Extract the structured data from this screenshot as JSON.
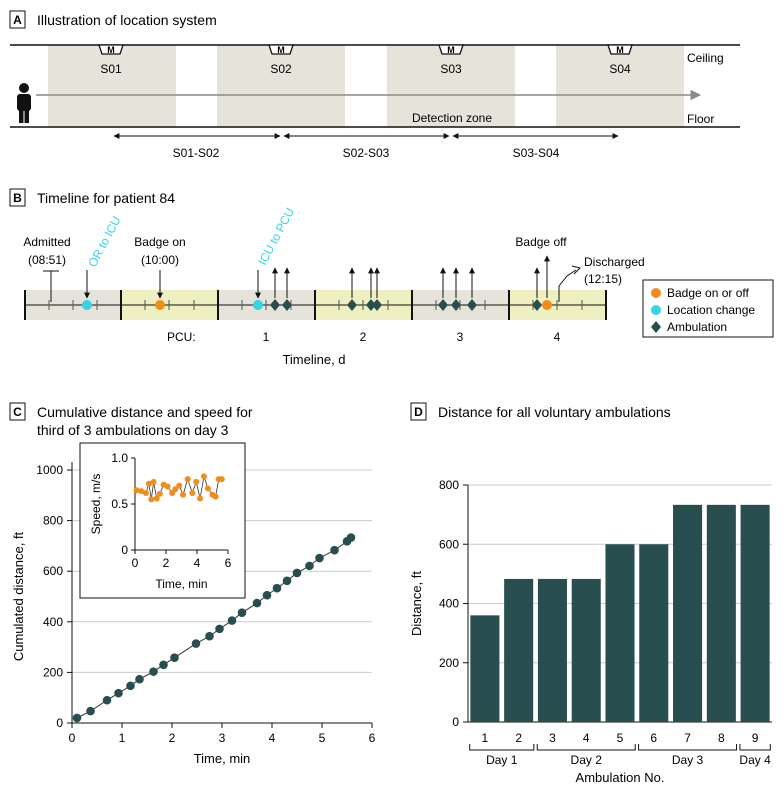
{
  "colors": {
    "zone_gray": "#e6e4da",
    "zone_green": "#eef0c2",
    "teal": "#294e4f",
    "orange": "#f28c1c",
    "cyan": "#35d3e3",
    "axis": "#111111",
    "gridline": "#cccccc"
  },
  "panel_a": {
    "letter": "A",
    "title": "Illustration of location system",
    "ceiling_label": "Ceiling",
    "floor_label": "Floor",
    "detection_zone_label": "Detection zone",
    "sensor_glyph": "M",
    "sensors": [
      "S01",
      "S02",
      "S03",
      "S04"
    ],
    "spans": [
      "S01-S02",
      "S02-S03",
      "S03-S04"
    ],
    "icons": [
      "person-icon",
      "motion-sensor-icon"
    ]
  },
  "panel_b": {
    "letter": "B",
    "title": "Timeline for patient 84",
    "admitted_label": "Admitted",
    "admitted_time": "(08:51)",
    "or_to_icu_label": "OR to ICU",
    "badge_on_label": "Badge on",
    "badge_on_time": "(10:00)",
    "icu_to_pcu_label": "ICU to PCU",
    "badge_off_label": "Badge off",
    "discharged_label": "Discharged",
    "discharged_time": "(12:15)",
    "pcu_label": "PCU:",
    "days": [
      "1",
      "2",
      "3",
      "4"
    ],
    "axis_label": "Timeline, d",
    "legend": [
      {
        "label": "Badge on or off",
        "marker": "circle",
        "color": "#f28c1c"
      },
      {
        "label": "Location change",
        "marker": "circle",
        "color": "#35d3e3"
      },
      {
        "label": "Ambulation",
        "marker": "diamond",
        "color": "#294e4f"
      }
    ]
  },
  "panel_c": {
    "letter": "C",
    "title_line1": "Cumulative distance and speed for",
    "title_line2": "third of 3 ambulations on day 3"
  },
  "panel_d": {
    "letter": "D",
    "title": "Distance for all voluntary ambulations",
    "day_groups": [
      "Day 1",
      "Day 2",
      "Day 3",
      "Day 4"
    ]
  },
  "chart_data": [
    {
      "id": "cumulative-distance",
      "type": "line",
      "xlabel": "Time, min",
      "ylabel": "Cumulated distance, ft",
      "xlim": [
        0,
        6
      ],
      "ylim": [
        0,
        1000
      ],
      "xticks": [
        0,
        1,
        2,
        3,
        4,
        5,
        6
      ],
      "yticks": [
        0,
        200,
        400,
        600,
        800,
        1000
      ],
      "grid": "horizontal",
      "x": [
        0.1,
        0.37,
        0.7,
        0.93,
        1.17,
        1.35,
        1.63,
        1.83,
        2.05,
        2.48,
        2.75,
        2.95,
        3.2,
        3.4,
        3.7,
        3.9,
        4.1,
        4.3,
        4.5,
        4.75,
        4.95,
        5.25,
        5.5,
        5.58
      ],
      "y": [
        20,
        47,
        90,
        118,
        147,
        173,
        203,
        230,
        258,
        314,
        343,
        372,
        405,
        436,
        474,
        505,
        533,
        562,
        593,
        621,
        652,
        683,
        718,
        733
      ]
    },
    {
      "id": "speed-inset",
      "type": "line",
      "xlabel": "Time, min",
      "ylabel": "Speed, m/s",
      "xlim": [
        0,
        6
      ],
      "ylim": [
        0,
        1.0
      ],
      "xticks": [
        0,
        2,
        4,
        6
      ],
      "yticks": [
        0,
        0.5,
        1.0
      ],
      "ytick_labels": [
        "0",
        "0.5",
        "1.0"
      ],
      "x": [
        0.1,
        0.4,
        0.7,
        0.9,
        1.05,
        1.2,
        1.4,
        1.6,
        1.85,
        2.1,
        2.4,
        2.6,
        2.85,
        3.1,
        3.4,
        3.7,
        3.95,
        4.2,
        4.45,
        4.7,
        5.0,
        5.2,
        5.4,
        5.6
      ],
      "y": [
        0.65,
        0.64,
        0.62,
        0.72,
        0.55,
        0.74,
        0.56,
        0.61,
        0.71,
        0.69,
        0.62,
        0.66,
        0.7,
        0.6,
        0.77,
        0.62,
        0.74,
        0.56,
        0.8,
        0.67,
        0.6,
        0.58,
        0.77,
        0.77
      ]
    },
    {
      "id": "voluntary-ambulations",
      "type": "bar",
      "xlabel": "Ambulation No.",
      "ylabel": "Distance, ft",
      "categories": [
        "1",
        "2",
        "3",
        "4",
        "5",
        "6",
        "7",
        "8",
        "9"
      ],
      "values": [
        360,
        483,
        483,
        483,
        600,
        600,
        733,
        733,
        733
      ],
      "ylim": [
        0,
        800
      ],
      "yticks": [
        0,
        200,
        400,
        600,
        800
      ],
      "grid": "horizontal",
      "groups": [
        {
          "label": "Day 1",
          "start": 0,
          "end": 1
        },
        {
          "label": "Day 2",
          "start": 2,
          "end": 4
        },
        {
          "label": "Day 3",
          "start": 5,
          "end": 7
        },
        {
          "label": "Day 4",
          "start": 8,
          "end": 8
        }
      ]
    }
  ]
}
